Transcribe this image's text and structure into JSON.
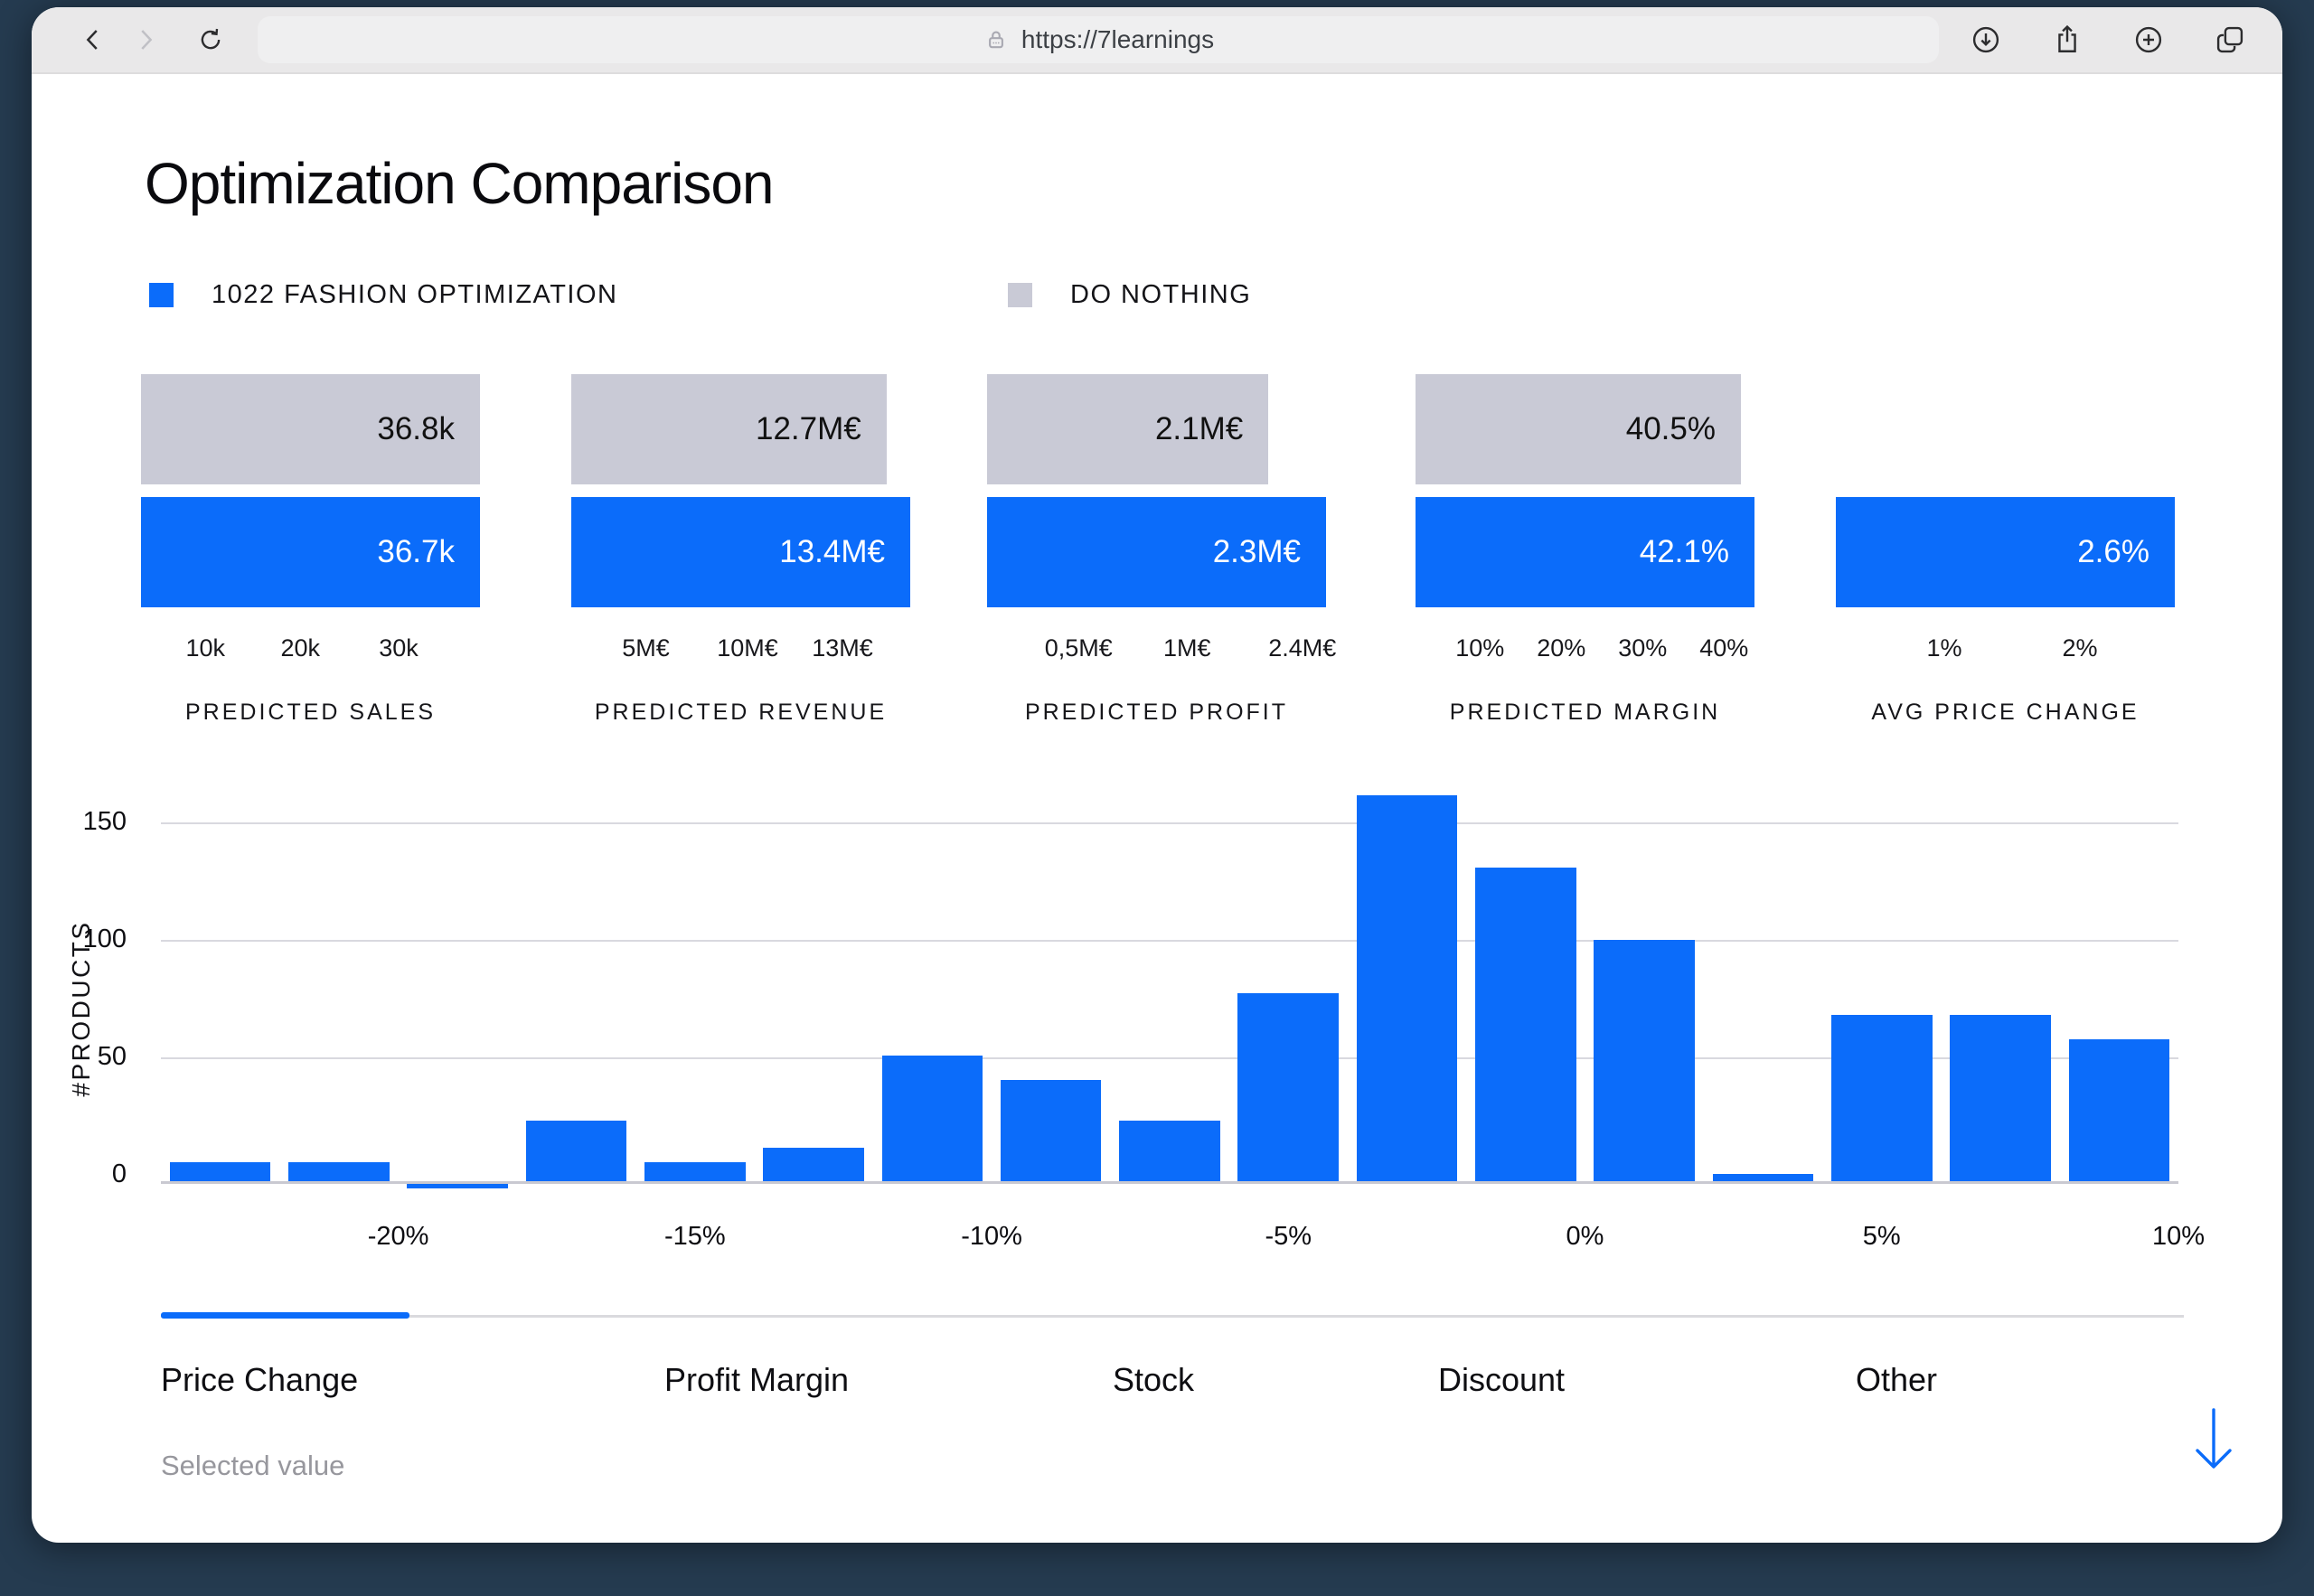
{
  "browser": {
    "url": "https://7learnings",
    "nav_icons": [
      "back-icon",
      "forward-icon",
      "reload-icon"
    ],
    "lock_icon": "lock-icon",
    "action_icons": [
      "download-icon",
      "share-icon",
      "new-tab-icon",
      "tab-overview-icon"
    ]
  },
  "page": {
    "title": "Optimization Comparison",
    "legend": [
      {
        "label": "1022 FASHION OPTIMIZATION",
        "color": "#0b6cfa"
      },
      {
        "label": "DO NOTHING",
        "color": "#c9cad6"
      }
    ],
    "tabs": [
      {
        "label": "Price Change",
        "active": true
      },
      {
        "label": "Profit Margin",
        "active": false
      },
      {
        "label": "Stock",
        "active": false
      },
      {
        "label": "Discount",
        "active": false
      },
      {
        "label": "Other",
        "active": false
      }
    ],
    "selected_value_label": "Selected value"
  },
  "colors": {
    "accent_blue": "#0b6cfa",
    "do_nothing_gray": "#c9cad6",
    "chrome_bg": "#e9e8e9",
    "outer_bg": "#253b50"
  },
  "chart_data": [
    {
      "type": "bar",
      "title": "PREDICTED SALES",
      "series": [
        {
          "name": "DO NOTHING",
          "value": 36.8,
          "label": "36.8k",
          "width_pct": 100
        },
        {
          "name": "1022 FASHION OPTIMIZATION",
          "value": 36.7,
          "label": "36.7k",
          "width_pct": 100
        }
      ],
      "ticks": [
        {
          "label": "10k",
          "pos": 19
        },
        {
          "label": "20k",
          "pos": 47
        },
        {
          "label": "30k",
          "pos": 76
        }
      ]
    },
    {
      "type": "bar",
      "title": "PREDICTED REVENUE",
      "series": [
        {
          "name": "DO NOTHING",
          "value": 12.7,
          "label": "12.7M€",
          "width_pct": 93
        },
        {
          "name": "1022 FASHION OPTIMIZATION",
          "value": 13.4,
          "label": "13.4M€",
          "width_pct": 100
        }
      ],
      "ticks": [
        {
          "label": "5M€",
          "pos": 22
        },
        {
          "label": "10M€",
          "pos": 52
        },
        {
          "label": "13M€",
          "pos": 80
        }
      ]
    },
    {
      "type": "bar",
      "title": "PREDICTED PROFIT",
      "series": [
        {
          "name": "DO NOTHING",
          "value": 2.1,
          "label": "2.1M€",
          "width_pct": 83
        },
        {
          "name": "1022 FASHION OPTIMIZATION",
          "value": 2.3,
          "label": "2.3M€",
          "width_pct": 100
        }
      ],
      "ticks": [
        {
          "label": "0,5M€",
          "pos": 27
        },
        {
          "label": "1M€",
          "pos": 59
        },
        {
          "label": "2.4M€",
          "pos": 93
        }
      ]
    },
    {
      "type": "bar",
      "title": "PREDICTED MARGIN",
      "series": [
        {
          "name": "DO NOTHING",
          "value": 40.5,
          "label": "40.5%",
          "width_pct": 96
        },
        {
          "name": "1022 FASHION OPTIMIZATION",
          "value": 42.1,
          "label": "42.1%",
          "width_pct": 100
        }
      ],
      "ticks": [
        {
          "label": "10%",
          "pos": 19
        },
        {
          "label": "20%",
          "pos": 43
        },
        {
          "label": "30%",
          "pos": 67
        },
        {
          "label": "40%",
          "pos": 91
        }
      ]
    },
    {
      "type": "bar",
      "title": "AVG PRICE CHANGE",
      "series": [
        {
          "name": "1022 FASHION OPTIMIZATION",
          "value": 2.6,
          "label": "2.6%",
          "width_pct": 100
        }
      ],
      "ticks": [
        {
          "label": "1%",
          "pos": 32
        },
        {
          "label": "2%",
          "pos": 72
        }
      ]
    },
    {
      "type": "bar",
      "subtype": "histogram",
      "title": "",
      "xlabel": "",
      "ylabel": "#PRODUCTS",
      "x_range": [
        -24,
        10
      ],
      "bin_start": -24,
      "bin_width": 2,
      "values": [
        8,
        8,
        -2,
        25,
        8,
        14,
        52,
        42,
        25,
        78,
        160,
        130,
        100,
        3,
        69,
        69,
        59
      ],
      "y_ticks": [
        0,
        50,
        100,
        150
      ],
      "ylim": [
        0,
        160
      ],
      "grid": true,
      "x_ticks": [
        {
          "label": "-20%",
          "value": -20
        },
        {
          "label": "-15%",
          "value": -15
        },
        {
          "label": "-10%",
          "value": -10
        },
        {
          "label": "-5%",
          "value": -5
        },
        {
          "label": "0%",
          "value": 0
        },
        {
          "label": "5%",
          "value": 5
        },
        {
          "label": "10%",
          "value": 10
        }
      ]
    }
  ]
}
